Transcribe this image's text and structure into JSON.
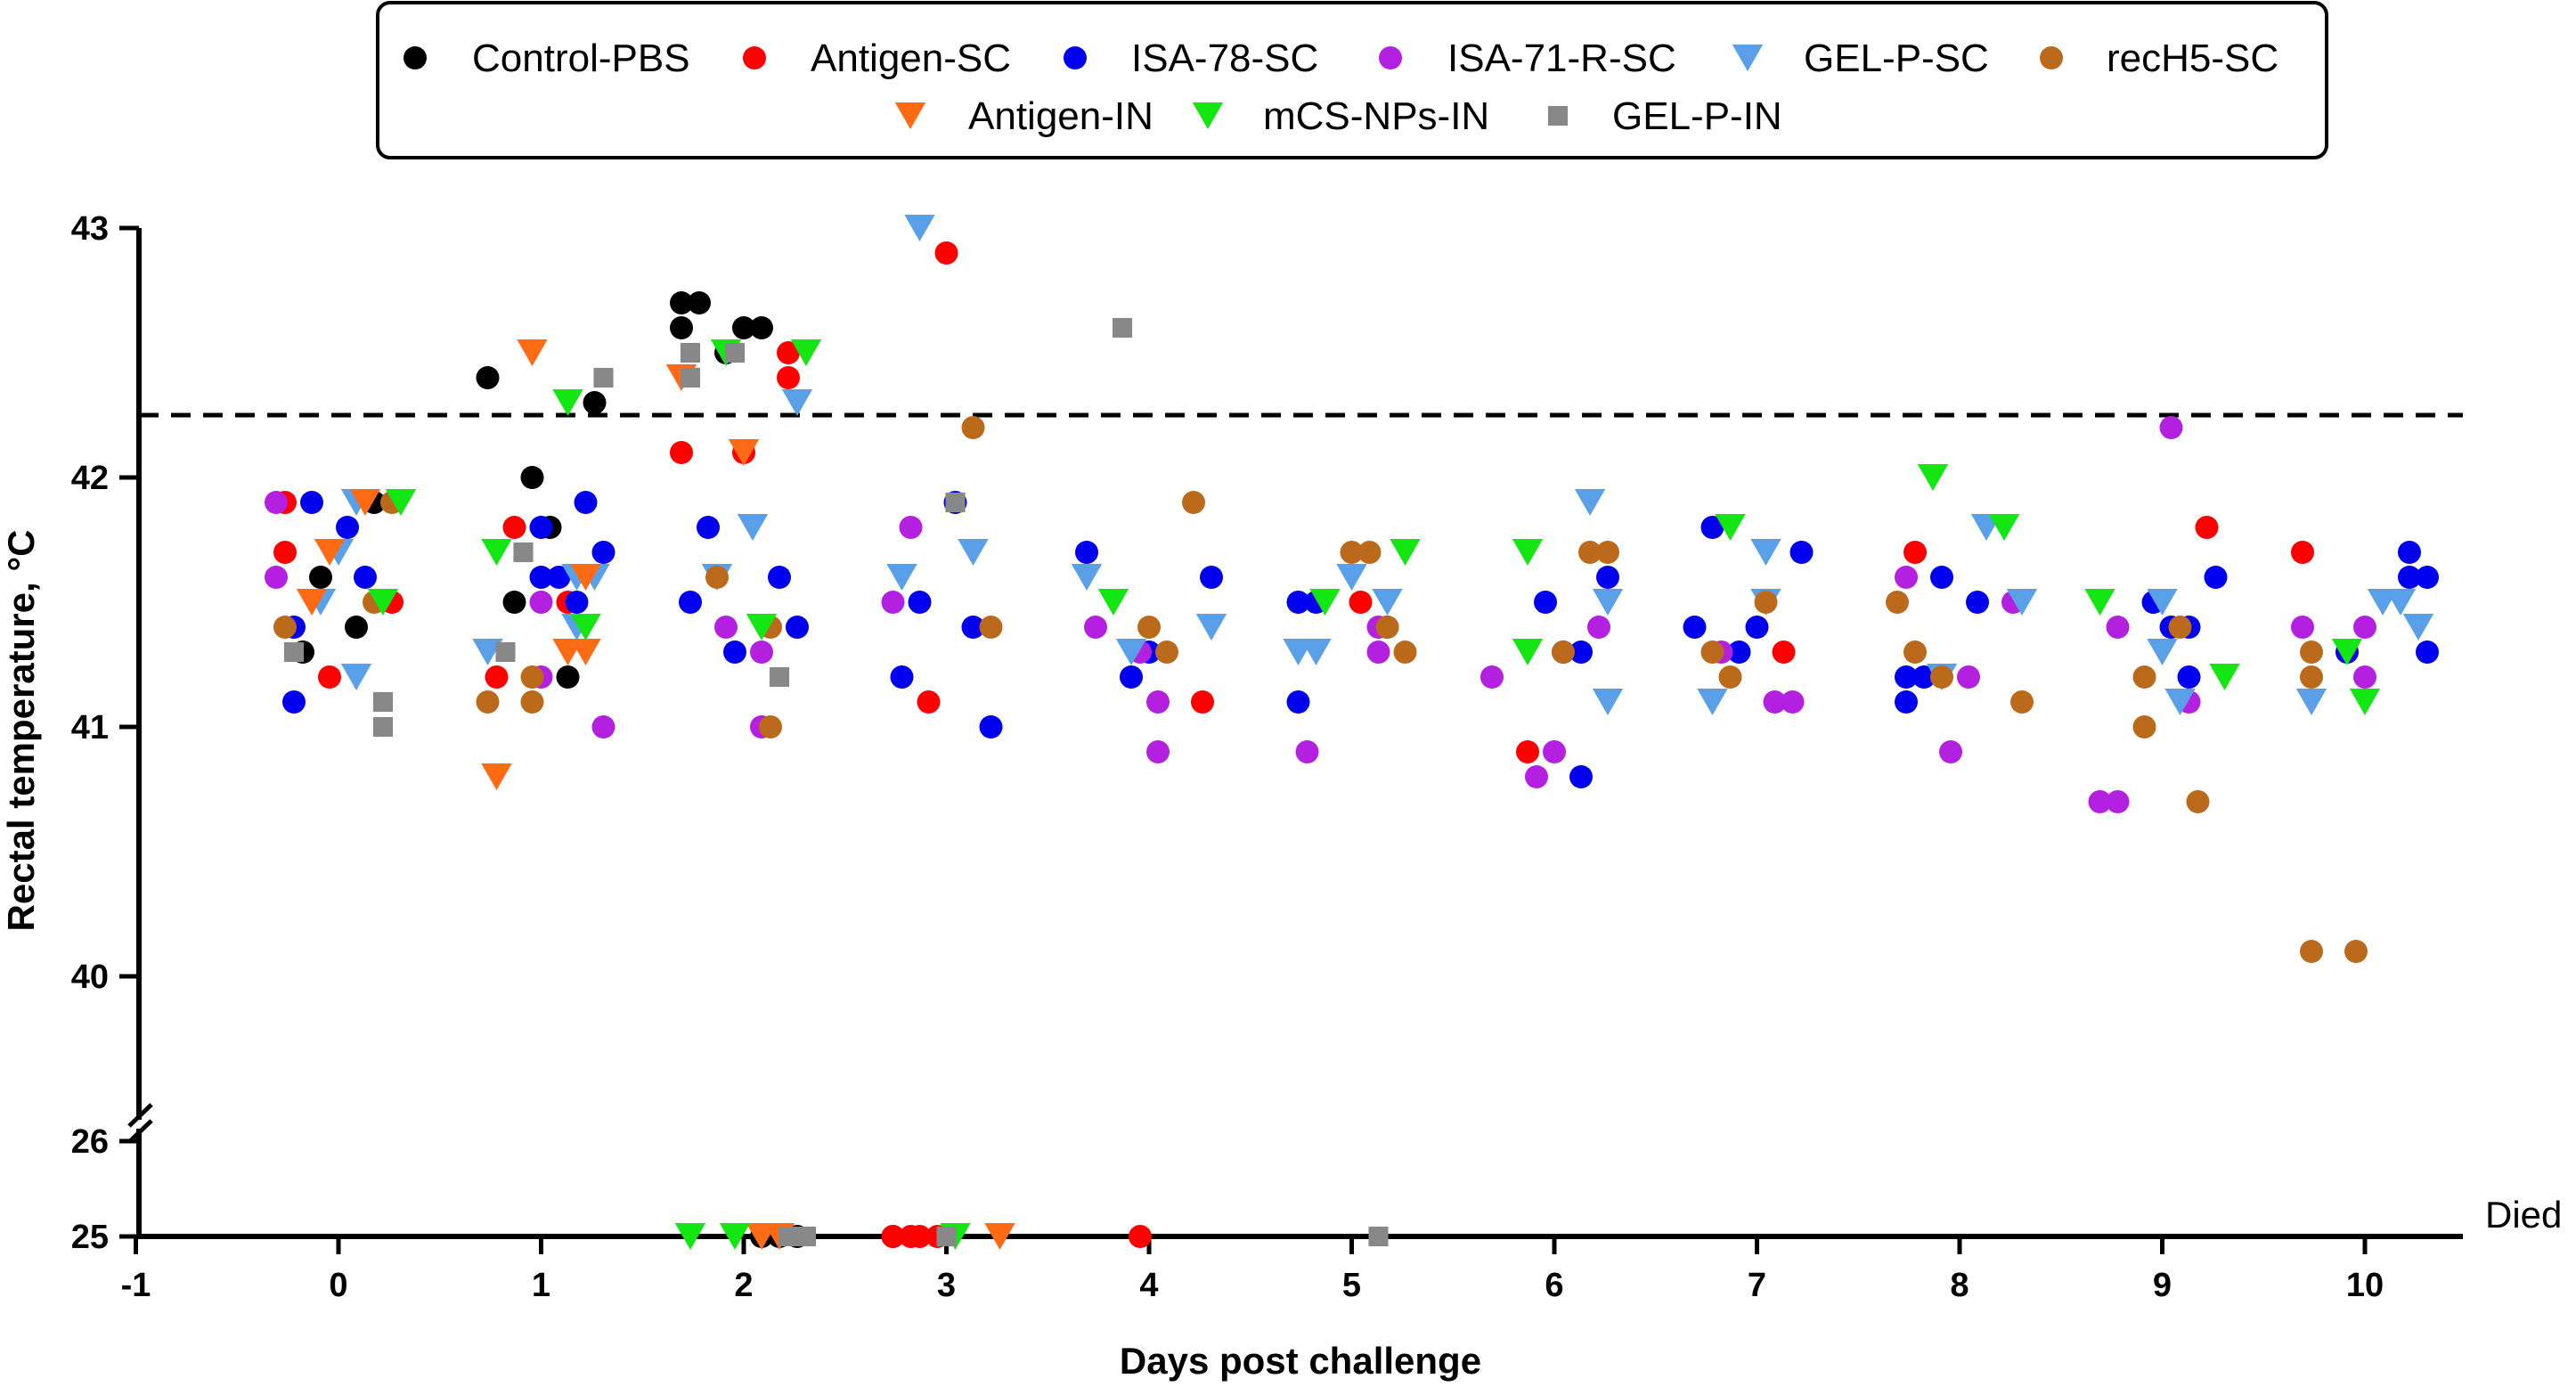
{
  "chart_data": {
    "type": "scatter",
    "xlabel": "Days post challenge",
    "ylabel": "Rectal temperature, °C",
    "xlim": [
      -1,
      10.5
    ],
    "x_ticks": [
      "-1",
      "0",
      "1",
      "2",
      "3",
      "4",
      "5",
      "6",
      "7",
      "8",
      "9",
      "10"
    ],
    "y_ticks_upper": [
      "40",
      "41",
      "42",
      "43"
    ],
    "y_ticks_lower": [
      "25",
      "26"
    ],
    "ylim_upper": [
      39.4,
      43.0
    ],
    "ylim_lower": [
      25,
      26
    ],
    "axis_break": true,
    "threshold": 42.25,
    "threshold_style": "dashed",
    "died_value": 25,
    "died_label": "Died",
    "legend": {
      "position": "top"
    },
    "series": [
      {
        "name": "Control-PBS",
        "marker": "circle",
        "color": "#000000",
        "points": [
          [
            0,
            41.6
          ],
          [
            0,
            41.4
          ],
          [
            0,
            41.3
          ],
          [
            0,
            41.9
          ],
          [
            1,
            42.4
          ],
          [
            1,
            42.3
          ],
          [
            1,
            42.0
          ],
          [
            1,
            41.8
          ],
          [
            1,
            41.5
          ],
          [
            1,
            41.2
          ],
          [
            2,
            42.7
          ],
          [
            2,
            42.7
          ],
          [
            2,
            42.6
          ],
          [
            2,
            42.6
          ],
          [
            2,
            42.6
          ],
          [
            2,
            42.5
          ],
          [
            2,
            25
          ],
          [
            2,
            25
          ],
          [
            2,
            25
          ],
          [
            3,
            25
          ]
        ]
      },
      {
        "name": "Antigen-SC",
        "marker": "circle",
        "color": "#ff0000",
        "points": [
          [
            0,
            41.9
          ],
          [
            0,
            41.7
          ],
          [
            0,
            41.5
          ],
          [
            0,
            41.2
          ],
          [
            1,
            41.8
          ],
          [
            1,
            41.5
          ],
          [
            1,
            41.2
          ],
          [
            2,
            42.5
          ],
          [
            2,
            42.4
          ],
          [
            2,
            42.1
          ],
          [
            2,
            42.1
          ],
          [
            3,
            42.9
          ],
          [
            3,
            41.1
          ],
          [
            3,
            25
          ],
          [
            3,
            25
          ],
          [
            3,
            25
          ],
          [
            3,
            25
          ],
          [
            4,
            41.1
          ],
          [
            4,
            25
          ],
          [
            5,
            41.5
          ],
          [
            6,
            40.9
          ],
          [
            7,
            41.3
          ],
          [
            8,
            41.7
          ],
          [
            9,
            41.8
          ],
          [
            10,
            41.7
          ]
        ]
      },
      {
        "name": "ISA-78-SC",
        "marker": "circle",
        "color": "#0000ee",
        "points": [
          [
            0,
            41.9
          ],
          [
            0,
            41.8
          ],
          [
            0,
            41.6
          ],
          [
            0,
            41.4
          ],
          [
            0,
            41.1
          ],
          [
            1,
            41.9
          ],
          [
            1,
            41.8
          ],
          [
            1,
            41.7
          ],
          [
            1,
            41.6
          ],
          [
            1,
            41.6
          ],
          [
            1,
            41.5
          ],
          [
            2,
            41.8
          ],
          [
            2,
            41.6
          ],
          [
            2,
            41.5
          ],
          [
            2,
            41.4
          ],
          [
            2,
            41.3
          ],
          [
            3,
            41.9
          ],
          [
            3,
            41.5
          ],
          [
            3,
            41.4
          ],
          [
            3,
            41.2
          ],
          [
            3,
            41.0
          ],
          [
            4,
            41.7
          ],
          [
            4,
            41.6
          ],
          [
            4,
            41.3
          ],
          [
            4,
            41.2
          ],
          [
            5,
            41.5
          ],
          [
            5,
            41.5
          ],
          [
            5,
            41.4
          ],
          [
            5,
            41.1
          ],
          [
            6,
            41.6
          ],
          [
            6,
            41.5
          ],
          [
            6,
            41.3
          ],
          [
            6,
            41.3
          ],
          [
            6,
            40.8
          ],
          [
            7,
            41.8
          ],
          [
            7,
            41.7
          ],
          [
            7,
            41.4
          ],
          [
            7,
            41.4
          ],
          [
            7,
            41.3
          ],
          [
            8,
            41.6
          ],
          [
            8,
            41.5
          ],
          [
            8,
            41.2
          ],
          [
            8,
            41.2
          ],
          [
            8,
            41.1
          ],
          [
            9,
            41.6
          ],
          [
            9,
            41.5
          ],
          [
            9,
            41.4
          ],
          [
            9,
            41.4
          ],
          [
            9,
            41.2
          ],
          [
            10,
            41.7
          ],
          [
            10,
            41.6
          ],
          [
            10,
            41.6
          ],
          [
            10,
            41.3
          ],
          [
            10,
            41.3
          ]
        ]
      },
      {
        "name": "ISA-71-R-SC",
        "marker": "circle",
        "color": "#b320e0",
        "points": [
          [
            0,
            41.9
          ],
          [
            0,
            41.6
          ],
          [
            1,
            41.5
          ],
          [
            1,
            41.2
          ],
          [
            1,
            41.0
          ],
          [
            2,
            41.4
          ],
          [
            2,
            41.3
          ],
          [
            2,
            41.0
          ],
          [
            3,
            41.8
          ],
          [
            3,
            41.5
          ],
          [
            4,
            41.4
          ],
          [
            4,
            41.3
          ],
          [
            4,
            41.1
          ],
          [
            4,
            40.9
          ],
          [
            5,
            41.4
          ],
          [
            5,
            41.3
          ],
          [
            5,
            40.9
          ],
          [
            6,
            41.4
          ],
          [
            6,
            41.2
          ],
          [
            6,
            40.9
          ],
          [
            6,
            40.8
          ],
          [
            7,
            41.3
          ],
          [
            7,
            41.1
          ],
          [
            7,
            41.1
          ],
          [
            8,
            41.6
          ],
          [
            8,
            41.5
          ],
          [
            8,
            41.2
          ],
          [
            8,
            40.9
          ],
          [
            9,
            42.2
          ],
          [
            9,
            41.4
          ],
          [
            9,
            41.1
          ],
          [
            9,
            40.7
          ],
          [
            9,
            40.7
          ],
          [
            10,
            41.4
          ],
          [
            10,
            41.4
          ],
          [
            10,
            41.2
          ]
        ]
      },
      {
        "name": "GEL-P-SC",
        "marker": "triangle-down",
        "color": "#5aa0e8",
        "points": [
          [
            0,
            41.9
          ],
          [
            0,
            41.7
          ],
          [
            0,
            41.5
          ],
          [
            0,
            41.2
          ],
          [
            1,
            41.6
          ],
          [
            1,
            41.6
          ],
          [
            1,
            41.4
          ],
          [
            1,
            41.3
          ],
          [
            2,
            42.3
          ],
          [
            2,
            41.8
          ],
          [
            2,
            41.6
          ],
          [
            3,
            43.0
          ],
          [
            3,
            41.7
          ],
          [
            3,
            41.6
          ],
          [
            4,
            41.6
          ],
          [
            4,
            41.4
          ],
          [
            4,
            41.3
          ],
          [
            5,
            41.6
          ],
          [
            5,
            41.5
          ],
          [
            5,
            41.3
          ],
          [
            5,
            41.3
          ],
          [
            6,
            41.9
          ],
          [
            6,
            41.5
          ],
          [
            6,
            41.1
          ],
          [
            7,
            41.7
          ],
          [
            7,
            41.5
          ],
          [
            7,
            41.1
          ],
          [
            8,
            41.8
          ],
          [
            8,
            41.8
          ],
          [
            8,
            41.5
          ],
          [
            8,
            41.2
          ],
          [
            9,
            41.5
          ],
          [
            9,
            41.3
          ],
          [
            9,
            41.1
          ],
          [
            10,
            41.5
          ],
          [
            10,
            41.5
          ],
          [
            10,
            41.4
          ],
          [
            10,
            41.1
          ]
        ]
      },
      {
        "name": "recH5-SC",
        "marker": "circle",
        "color": "#bb6a1c",
        "points": [
          [
            0,
            41.9
          ],
          [
            0,
            41.5
          ],
          [
            0,
            41.4
          ],
          [
            1,
            41.2
          ],
          [
            1,
            41.1
          ],
          [
            1,
            41.1
          ],
          [
            2,
            41.6
          ],
          [
            2,
            41.4
          ],
          [
            2,
            41.0
          ],
          [
            3,
            42.2
          ],
          [
            3,
            41.4
          ],
          [
            4,
            41.9
          ],
          [
            4,
            41.4
          ],
          [
            4,
            41.3
          ],
          [
            5,
            41.7
          ],
          [
            5,
            41.7
          ],
          [
            5,
            41.4
          ],
          [
            5,
            41.3
          ],
          [
            6,
            41.7
          ],
          [
            6,
            41.7
          ],
          [
            6,
            41.3
          ],
          [
            7,
            41.5
          ],
          [
            7,
            41.3
          ],
          [
            7,
            41.2
          ],
          [
            8,
            41.5
          ],
          [
            8,
            41.3
          ],
          [
            8,
            41.2
          ],
          [
            8,
            41.1
          ],
          [
            9,
            41.4
          ],
          [
            9,
            41.2
          ],
          [
            9,
            41.0
          ],
          [
            9,
            40.7
          ],
          [
            10,
            41.3
          ],
          [
            10,
            41.2
          ],
          [
            10,
            40.1
          ],
          [
            10,
            40.1
          ]
        ]
      },
      {
        "name": "Antigen-IN",
        "marker": "triangle-down",
        "color": "#ff6a14",
        "points": [
          [
            0,
            41.9
          ],
          [
            0,
            41.7
          ],
          [
            0,
            41.5
          ],
          [
            1,
            42.5
          ],
          [
            1,
            41.6
          ],
          [
            1,
            41.3
          ],
          [
            1,
            41.3
          ],
          [
            1,
            40.8
          ],
          [
            2,
            42.4
          ],
          [
            2,
            42.1
          ],
          [
            2,
            25
          ],
          [
            2,
            25
          ],
          [
            3,
            25
          ]
        ]
      },
      {
        "name": "mCS-NPs-IN",
        "marker": "triangle-down",
        "color": "#14e614",
        "points": [
          [
            0,
            41.9
          ],
          [
            0,
            41.5
          ],
          [
            1,
            42.3
          ],
          [
            1,
            41.7
          ],
          [
            1,
            41.4
          ],
          [
            2,
            42.5
          ],
          [
            2,
            42.5
          ],
          [
            2,
            41.4
          ],
          [
            2,
            25
          ],
          [
            2,
            25
          ],
          [
            3,
            25
          ],
          [
            4,
            41.5
          ],
          [
            5,
            41.7
          ],
          [
            5,
            41.5
          ],
          [
            6,
            41.3
          ],
          [
            6,
            41.7
          ],
          [
            7,
            41.8
          ],
          [
            8,
            42.0
          ],
          [
            8,
            41.8
          ],
          [
            9,
            41.5
          ],
          [
            9,
            41.2
          ],
          [
            10,
            41.3
          ],
          [
            10,
            41.1
          ]
        ]
      },
      {
        "name": "GEL-P-IN",
        "marker": "square",
        "color": "#888888",
        "points": [
          [
            0,
            41.3
          ],
          [
            0,
            41.1
          ],
          [
            0,
            41.0
          ],
          [
            1,
            42.4
          ],
          [
            1,
            41.7
          ],
          [
            1,
            41.3
          ],
          [
            2,
            42.5
          ],
          [
            2,
            42.5
          ],
          [
            2,
            42.4
          ],
          [
            2,
            41.2
          ],
          [
            2,
            25
          ],
          [
            2,
            25
          ],
          [
            3,
            41.9
          ],
          [
            3,
            25
          ],
          [
            4,
            42.6
          ],
          [
            5,
            25
          ]
        ]
      }
    ]
  }
}
